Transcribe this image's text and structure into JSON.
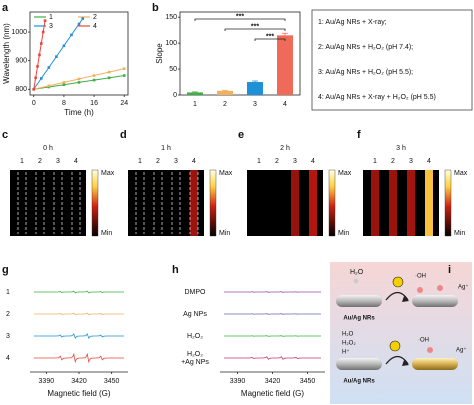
{
  "panel_labels": [
    "a",
    "b",
    "c",
    "d",
    "e",
    "f",
    "g",
    "h",
    "i"
  ],
  "chart_data": [
    {
      "type": "line",
      "xlabel": "Time (h)",
      "ylabel": "Wavelength (nm)",
      "xlim": [
        -1,
        25
      ],
      "xticks": [
        0,
        8,
        16,
        24
      ],
      "ylim": [
        780,
        1070
      ],
      "yticks": [
        800,
        900,
        1000
      ],
      "legend": "upper left",
      "series": [
        {
          "name": "1",
          "color": "#3cb043",
          "x": [
            0,
            4,
            8,
            12,
            16,
            20,
            24
          ],
          "values": [
            800,
            808,
            816,
            824,
            832,
            840,
            848
          ]
        },
        {
          "name": "2",
          "color": "#f0b060",
          "x": [
            0,
            4,
            8,
            12,
            16,
            20,
            24
          ],
          "values": [
            800,
            812,
            824,
            836,
            848,
            860,
            872
          ]
        },
        {
          "name": "3",
          "color": "#1e90d8",
          "x": [
            0,
            2,
            4,
            6,
            8,
            10,
            12,
            13
          ],
          "values": [
            800,
            838,
            876,
            914,
            952,
            990,
            1028,
            1047
          ]
        },
        {
          "name": "4",
          "color": "#e8453c",
          "x": [
            0,
            0.5,
            1,
            1.5,
            2,
            2.5,
            3
          ],
          "values": [
            800,
            840,
            880,
            920,
            960,
            1000,
            1040
          ]
        }
      ]
    },
    {
      "type": "bar",
      "ylabel": "Slope",
      "categories": [
        "1",
        "2",
        "3",
        "4"
      ],
      "values": [
        5,
        8,
        25,
        115
      ],
      "errors": [
        1,
        1,
        2,
        4
      ],
      "colors": [
        "#3cb043",
        "#f0b060",
        "#1e90d8",
        "#f06a5a"
      ],
      "ylim": [
        0,
        160
      ],
      "yticks": [
        0,
        50,
        100,
        150
      ],
      "significance": [
        {
          "pair": [
            "1",
            "4"
          ],
          "label": "***"
        },
        {
          "pair": [
            "2",
            "4"
          ],
          "label": "***"
        },
        {
          "pair": [
            "3",
            "4"
          ],
          "label": "***"
        }
      ]
    }
  ],
  "legend_box": [
    "1: Au/Ag NRs + X-ray;",
    "2: Au/Ag NRs + H₂O₂ (pH 7.4);",
    "3: Au/Ag NRs + H₂O₂ (pH 5.5);",
    "4: Au/Ag NRs + X-ray + H₂O₂ (pH 5.5)"
  ],
  "heatmaps": {
    "titles": [
      "0 h",
      "1 h",
      "2 h",
      "3 h"
    ],
    "lanes": [
      "1",
      "2",
      "3",
      "4"
    ],
    "colorbar": [
      "Max",
      "Min"
    ]
  },
  "epr": [
    {
      "labels": [
        [
          "1"
        ],
        [
          "2"
        ],
        [
          "3"
        ],
        [
          "4"
        ]
      ],
      "xlabel": "Magnetic field (G)",
      "xlim": [
        3375,
        3465
      ],
      "xticks": [
        3390,
        3420,
        3450
      ]
    },
    {
      "labels": [
        [
          "DMPO"
        ],
        [
          "Ag NPs"
        ],
        [
          "H₂O₂"
        ],
        [
          "H₂O₂",
          "+Ag NPs"
        ]
      ],
      "xlabel": "Magnetic field (G)",
      "xlim": [
        3375,
        3465
      ],
      "xticks": [
        3390,
        3420,
        3450
      ]
    }
  ],
  "schematic": {
    "top": {
      "reactant": "H₂O",
      "radical": "·OH",
      "product": "Ag⁺",
      "rod": "Au/Ag NRs"
    },
    "bottom": {
      "reactants": [
        "H₂O",
        "H₂O₂",
        "H⁺"
      ],
      "radical": "·OH",
      "product": "Ag⁺",
      "rod": "Au/Ag NRs"
    }
  }
}
